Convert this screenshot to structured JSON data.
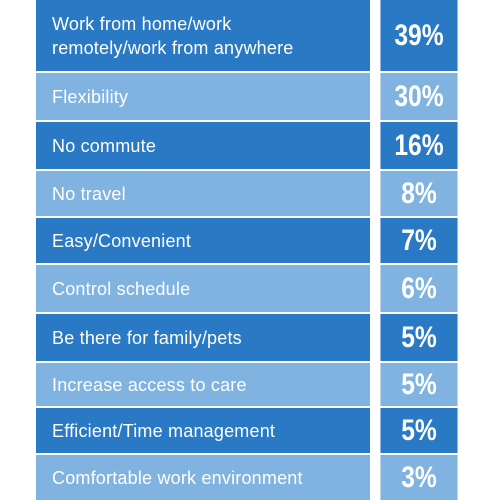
{
  "colors": {
    "dark": "#2a79c4",
    "light": "#80b3df",
    "separator": "#ffffff"
  },
  "chart_data": {
    "type": "table",
    "categories": [
      "Work from home/work remotely/work from anywhere",
      "Flexibility",
      "No commute",
      "No travel",
      "Easy/Convenient",
      "Control schedule",
      "Be there for family/pets",
      "Increase access to care",
      "Efficient/Time management",
      "Comfortable work environment"
    ],
    "values": [
      39,
      30,
      16,
      8,
      7,
      6,
      5,
      5,
      5,
      3
    ],
    "value_labels": [
      "39%",
      "30%",
      "16%",
      "8%",
      "7%",
      "6%",
      "5%",
      "5%",
      "5%",
      "3%"
    ],
    "unit": "%"
  }
}
